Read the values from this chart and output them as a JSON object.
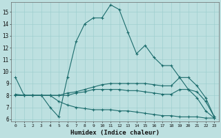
{
  "xlabel": "Humidex (Indice chaleur)",
  "bg_color": "#bde0e0",
  "line_color": "#1a6b6b",
  "grid_color": "#99cccc",
  "xlim": [
    -0.5,
    23.5
  ],
  "ylim": [
    5.8,
    15.8
  ],
  "yticks": [
    6,
    7,
    8,
    9,
    10,
    11,
    12,
    13,
    14,
    15
  ],
  "xticks": [
    0,
    1,
    2,
    3,
    4,
    5,
    6,
    7,
    8,
    9,
    10,
    11,
    12,
    13,
    14,
    15,
    16,
    17,
    18,
    19,
    20,
    21,
    22,
    23
  ],
  "line1_x": [
    0,
    1,
    2,
    3,
    4,
    5,
    6,
    7,
    8,
    9,
    10,
    11,
    12,
    13,
    14,
    15,
    16,
    17,
    18,
    19,
    20,
    21,
    22,
    23
  ],
  "line1_y": [
    9.5,
    8.0,
    8.0,
    8.0,
    7.0,
    6.2,
    9.5,
    12.5,
    14.0,
    14.5,
    14.5,
    15.6,
    15.2,
    13.3,
    11.5,
    12.2,
    11.2,
    10.5,
    10.5,
    9.5,
    8.5,
    7.8,
    6.7,
    6.1
  ],
  "line2_x": [
    0,
    1,
    2,
    3,
    4,
    5,
    6,
    7,
    8,
    9,
    10,
    11,
    12,
    13,
    14,
    15,
    16,
    17,
    18,
    19,
    20,
    21,
    22,
    23
  ],
  "line2_y": [
    8.1,
    8.0,
    8.0,
    8.0,
    8.0,
    8.0,
    8.2,
    8.3,
    8.5,
    8.7,
    8.9,
    9.0,
    9.0,
    9.0,
    9.0,
    9.0,
    8.9,
    8.8,
    8.8,
    9.5,
    9.5,
    8.8,
    7.8,
    6.2
  ],
  "line3_x": [
    0,
    1,
    2,
    3,
    4,
    5,
    6,
    7,
    8,
    9,
    10,
    11,
    12,
    13,
    14,
    15,
    16,
    17,
    18,
    19,
    20,
    21,
    22,
    23
  ],
  "line3_y": [
    8.0,
    8.0,
    8.0,
    8.0,
    8.0,
    8.0,
    8.0,
    8.2,
    8.3,
    8.5,
    8.5,
    8.5,
    8.5,
    8.4,
    8.4,
    8.3,
    8.2,
    8.1,
    8.1,
    8.5,
    8.5,
    8.3,
    7.5,
    6.2
  ],
  "line4_x": [
    0,
    1,
    2,
    3,
    4,
    5,
    6,
    7,
    8,
    9,
    10,
    11,
    12,
    13,
    14,
    15,
    16,
    17,
    18,
    19,
    20,
    21,
    22,
    23
  ],
  "line4_y": [
    8.0,
    8.0,
    8.0,
    8.0,
    8.0,
    7.5,
    7.2,
    7.0,
    6.9,
    6.8,
    6.8,
    6.8,
    6.7,
    6.7,
    6.6,
    6.5,
    6.4,
    6.3,
    6.3,
    6.2,
    6.2,
    6.2,
    6.1,
    6.1
  ]
}
